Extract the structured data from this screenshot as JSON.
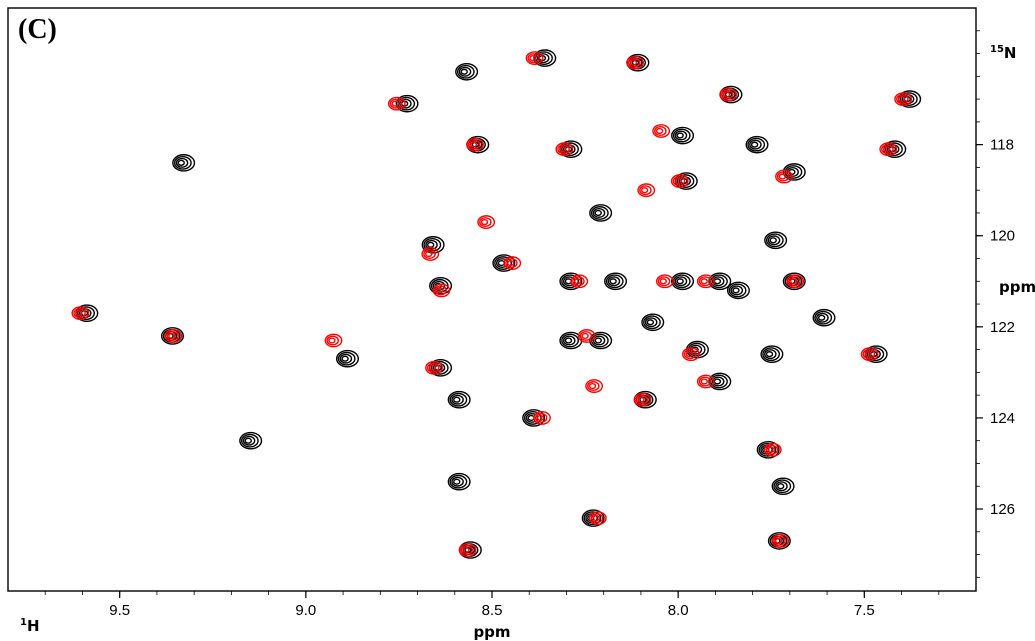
{
  "panel": {
    "label": "(C)"
  },
  "chart_data": {
    "type": "scatter",
    "description_kind": "2D 1H-15N HSQC overlay",
    "x_axis": {
      "nucleus": "1H",
      "unit": "ppm",
      "range": [
        9.8,
        7.2
      ],
      "reversed": true,
      "ticks": [
        9.5,
        9.0,
        8.5,
        8.0,
        7.5
      ],
      "tick_labels": [
        "9.5",
        "9.0",
        "8.5",
        "8.0",
        "7.5"
      ]
    },
    "y_axis": {
      "nucleus": "15N",
      "unit": "ppm",
      "range": [
        115.0,
        127.8
      ],
      "reversed": true,
      "ticks": [
        118,
        120,
        122,
        124,
        126
      ],
      "tick_labels": [
        "118",
        "120",
        "122",
        "124",
        "126"
      ]
    },
    "labels": {
      "x_nucleus_prefix": "1",
      "x_nucleus_letter": "H",
      "x_unit": "ppm",
      "y_nucleus_prefix": "15",
      "y_nucleus_letter": "N",
      "y_unit": "ppm"
    },
    "series": [
      {
        "color": "#000000",
        "peaks": [
          [
            9.6,
            121.7
          ],
          [
            9.37,
            122.2
          ],
          [
            9.34,
            118.4
          ],
          [
            9.16,
            124.5
          ],
          [
            8.9,
            122.7
          ],
          [
            8.74,
            117.1
          ],
          [
            8.67,
            120.2
          ],
          [
            8.65,
            121.1
          ],
          [
            8.65,
            122.9
          ],
          [
            8.6,
            123.6
          ],
          [
            8.6,
            125.4
          ],
          [
            8.58,
            116.4
          ],
          [
            8.55,
            118.0
          ],
          [
            8.48,
            120.6
          ],
          [
            8.4,
            124.0
          ],
          [
            8.37,
            116.1
          ],
          [
            8.3,
            118.1
          ],
          [
            8.3,
            121.0
          ],
          [
            8.22,
            119.5
          ],
          [
            8.22,
            122.3
          ],
          [
            8.24,
            126.2
          ],
          [
            8.12,
            116.2
          ],
          [
            8.1,
            123.6
          ],
          [
            8.08,
            121.9
          ],
          [
            8.0,
            117.8
          ],
          [
            8.0,
            121.0
          ],
          [
            7.99,
            118.8
          ],
          [
            7.96,
            122.5
          ],
          [
            7.9,
            121.0
          ],
          [
            7.87,
            116.9
          ],
          [
            7.9,
            123.2
          ],
          [
            7.8,
            118.0
          ],
          [
            7.76,
            122.6
          ],
          [
            7.75,
            120.1
          ],
          [
            7.77,
            124.7
          ],
          [
            7.74,
            126.7
          ],
          [
            7.73,
            125.5
          ],
          [
            7.7,
            121.0
          ],
          [
            7.7,
            118.6
          ],
          [
            7.62,
            121.8
          ],
          [
            7.48,
            122.6
          ],
          [
            7.43,
            118.1
          ],
          [
            7.39,
            117.0
          ],
          [
            8.57,
            126.9
          ],
          [
            8.3,
            122.3
          ],
          [
            8.18,
            121.0
          ],
          [
            7.85,
            121.2
          ]
        ]
      },
      {
        "color": "#ff0000",
        "peaks": [
          [
            9.61,
            121.7
          ],
          [
            9.36,
            122.2
          ],
          [
            8.93,
            122.3
          ],
          [
            8.76,
            117.1
          ],
          [
            8.67,
            120.4
          ],
          [
            8.64,
            121.2
          ],
          [
            8.66,
            122.9
          ],
          [
            8.45,
            120.6
          ],
          [
            8.39,
            116.1
          ],
          [
            8.37,
            124.0
          ],
          [
            8.27,
            121.0
          ],
          [
            8.25,
            122.2
          ],
          [
            8.23,
            123.3
          ],
          [
            8.12,
            116.2
          ],
          [
            8.1,
            123.6
          ],
          [
            8.09,
            119.0
          ],
          [
            8.05,
            117.7
          ],
          [
            8.0,
            118.8
          ],
          [
            8.04,
            121.0
          ],
          [
            7.97,
            122.6
          ],
          [
            7.93,
            123.2
          ],
          [
            7.93,
            121.0
          ],
          [
            7.75,
            124.7
          ],
          [
            7.73,
            126.7
          ],
          [
            7.72,
            118.7
          ],
          [
            7.69,
            121.0
          ],
          [
            7.49,
            122.6
          ],
          [
            7.44,
            118.1
          ],
          [
            7.4,
            117.0
          ],
          [
            8.57,
            126.9
          ],
          [
            8.31,
            118.1
          ],
          [
            8.55,
            118.0
          ],
          [
            8.22,
            126.2
          ],
          [
            7.87,
            116.9
          ],
          [
            8.52,
            119.7
          ]
        ]
      }
    ]
  }
}
